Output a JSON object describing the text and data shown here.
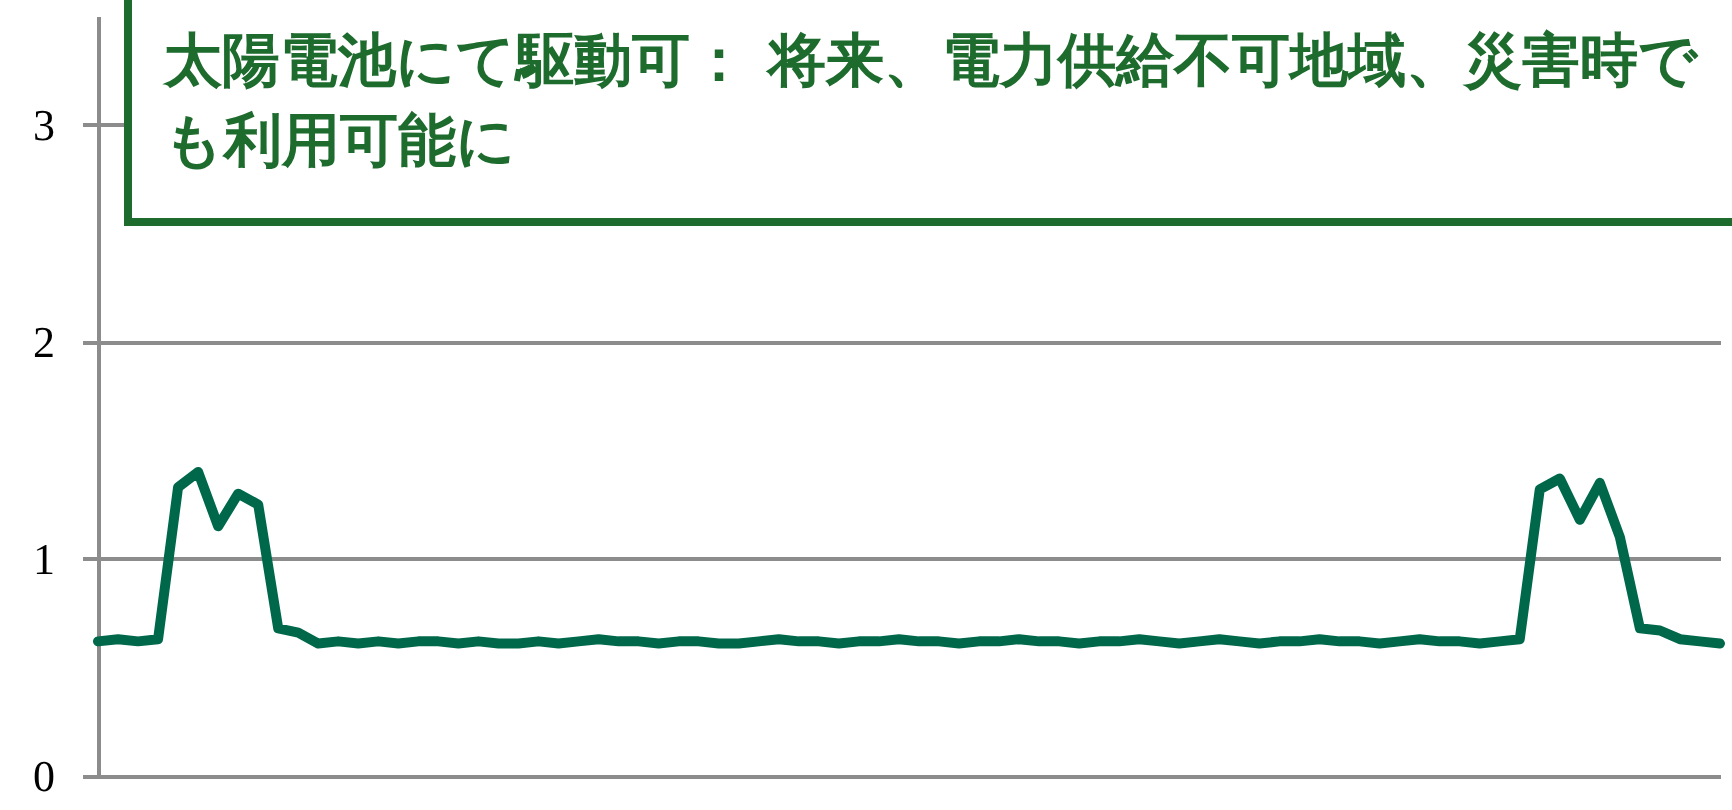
{
  "chart_data": {
    "type": "line",
    "categories": [
      null,
      null,
      null,
      null,
      null,
      null,
      null,
      null,
      null,
      null,
      null,
      null,
      null,
      null,
      null,
      null,
      null,
      null,
      null,
      null,
      null,
      null,
      null,
      null,
      null,
      null,
      null,
      null,
      null,
      null,
      null,
      null,
      null,
      null,
      null,
      null,
      null,
      null,
      null,
      null,
      null,
      null,
      null,
      null,
      null,
      null,
      null,
      null,
      null,
      null,
      null,
      null,
      null,
      null,
      null,
      null,
      null,
      null,
      null,
      null,
      null,
      null,
      null,
      null,
      null,
      null,
      null,
      null,
      null,
      null,
      null,
      null,
      null,
      null,
      null,
      null,
      null,
      null,
      null,
      null,
      null,
      null
    ],
    "series": [
      {
        "color": "#00684a",
        "values": [
          0.62,
          0.63,
          0.62,
          0.63,
          1.33,
          1.4,
          1.15,
          1.3,
          1.25,
          0.68,
          0.66,
          0.61,
          0.62,
          0.61,
          0.62,
          0.61,
          0.62,
          0.62,
          0.61,
          0.62,
          0.61,
          0.61,
          0.62,
          0.61,
          0.62,
          0.63,
          0.62,
          0.62,
          0.61,
          0.62,
          0.62,
          0.61,
          0.61,
          0.62,
          0.63,
          0.62,
          0.62,
          0.61,
          0.62,
          0.62,
          0.63,
          0.62,
          0.62,
          0.61,
          0.62,
          0.62,
          0.63,
          0.62,
          0.62,
          0.61,
          0.62,
          0.62,
          0.63,
          0.62,
          0.61,
          0.62,
          0.63,
          0.62,
          0.61,
          0.62,
          0.62,
          0.63,
          0.62,
          0.62,
          0.61,
          0.62,
          0.63,
          0.62,
          0.62,
          0.61,
          0.62,
          0.63,
          1.32,
          1.37,
          1.18,
          1.35,
          1.1,
          0.68,
          0.67,
          0.63,
          0.62,
          0.61
        ]
      }
    ],
    "ylim": [
      0,
      3.5
    ],
    "yticks": [
      0,
      1,
      2,
      3
    ],
    "grid": true,
    "tick_labels": "y",
    "line_style": "solid",
    "marker": "none",
    "annotations": [
      "太陽電池にて駆動可： 将来、電力供給不可地域、災害時でも利用可能に"
    ]
  }
}
